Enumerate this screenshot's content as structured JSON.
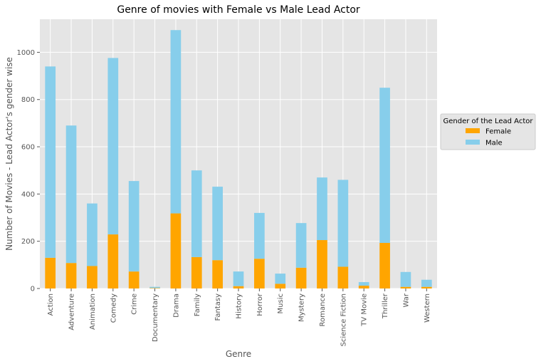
{
  "chart_data": {
    "type": "bar",
    "stacked": true,
    "title": "Genre of movies with Female vs Male Lead Actor",
    "xlabel": "Genre",
    "ylabel": "Number of Movies - Lead Actor's gender wise",
    "categories": [
      "Action",
      "Adventure",
      "Animation",
      "Comedy",
      "Crime",
      "Documentary",
      "Drama",
      "Family",
      "Fantasy",
      "History",
      "Horror",
      "Music",
      "Mystery",
      "Romance",
      "Science Fiction",
      "TV Movie",
      "Thriller",
      "War",
      "Western"
    ],
    "series": [
      {
        "name": "Female",
        "color": "#ffa500",
        "values": [
          130,
          108,
          95,
          229,
          72,
          2,
          318,
          133,
          120,
          10,
          126,
          20,
          88,
          205,
          92,
          12,
          193,
          7,
          7
        ]
      },
      {
        "name": "Male",
        "color": "#87ceeb",
        "values": [
          810,
          582,
          265,
          747,
          383,
          5,
          776,
          367,
          311,
          62,
          194,
          43,
          189,
          265,
          368,
          15,
          657,
          63,
          30
        ]
      }
    ],
    "ylim": [
      0,
      1140
    ],
    "yticks": [
      0,
      200,
      400,
      600,
      800,
      1000
    ],
    "grid": true,
    "legend": {
      "title": "Gender of the Lead Actor",
      "placement": "center-right, outside plot"
    }
  }
}
